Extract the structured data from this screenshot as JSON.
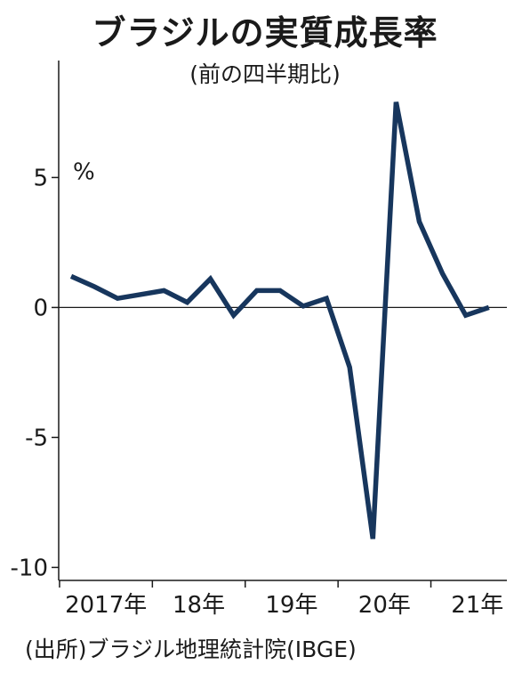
{
  "title": "ブラジルの実質成長率",
  "subtitle": "(前の四半期比)",
  "source": "(出所)ブラジル地理統計院(IBGE)",
  "chart_data": {
    "type": "line",
    "unit": "%",
    "ylim": [
      -10.5,
      9.5
    ],
    "yticks": [
      5,
      0,
      -5,
      -10
    ],
    "ytick_labels": [
      "5",
      "0",
      "-5",
      "-10"
    ],
    "x_labels": [
      {
        "label": "2017年",
        "index": 1.5
      },
      {
        "label": "18年",
        "index": 5.5
      },
      {
        "label": "19年",
        "index": 9.5
      },
      {
        "label": "20年",
        "index": 13.5
      },
      {
        "label": "21年",
        "index": 17.5
      }
    ],
    "series": [
      {
        "color": "#17365d",
        "values": [
          1.2,
          0.8,
          0.35,
          0.5,
          0.65,
          0.2,
          1.1,
          -0.3,
          0.65,
          0.65,
          0.05,
          0.35,
          -2.3,
          -8.9,
          7.9,
          3.3,
          1.3,
          -0.3,
          0.0
        ]
      }
    ],
    "grid": false
  }
}
